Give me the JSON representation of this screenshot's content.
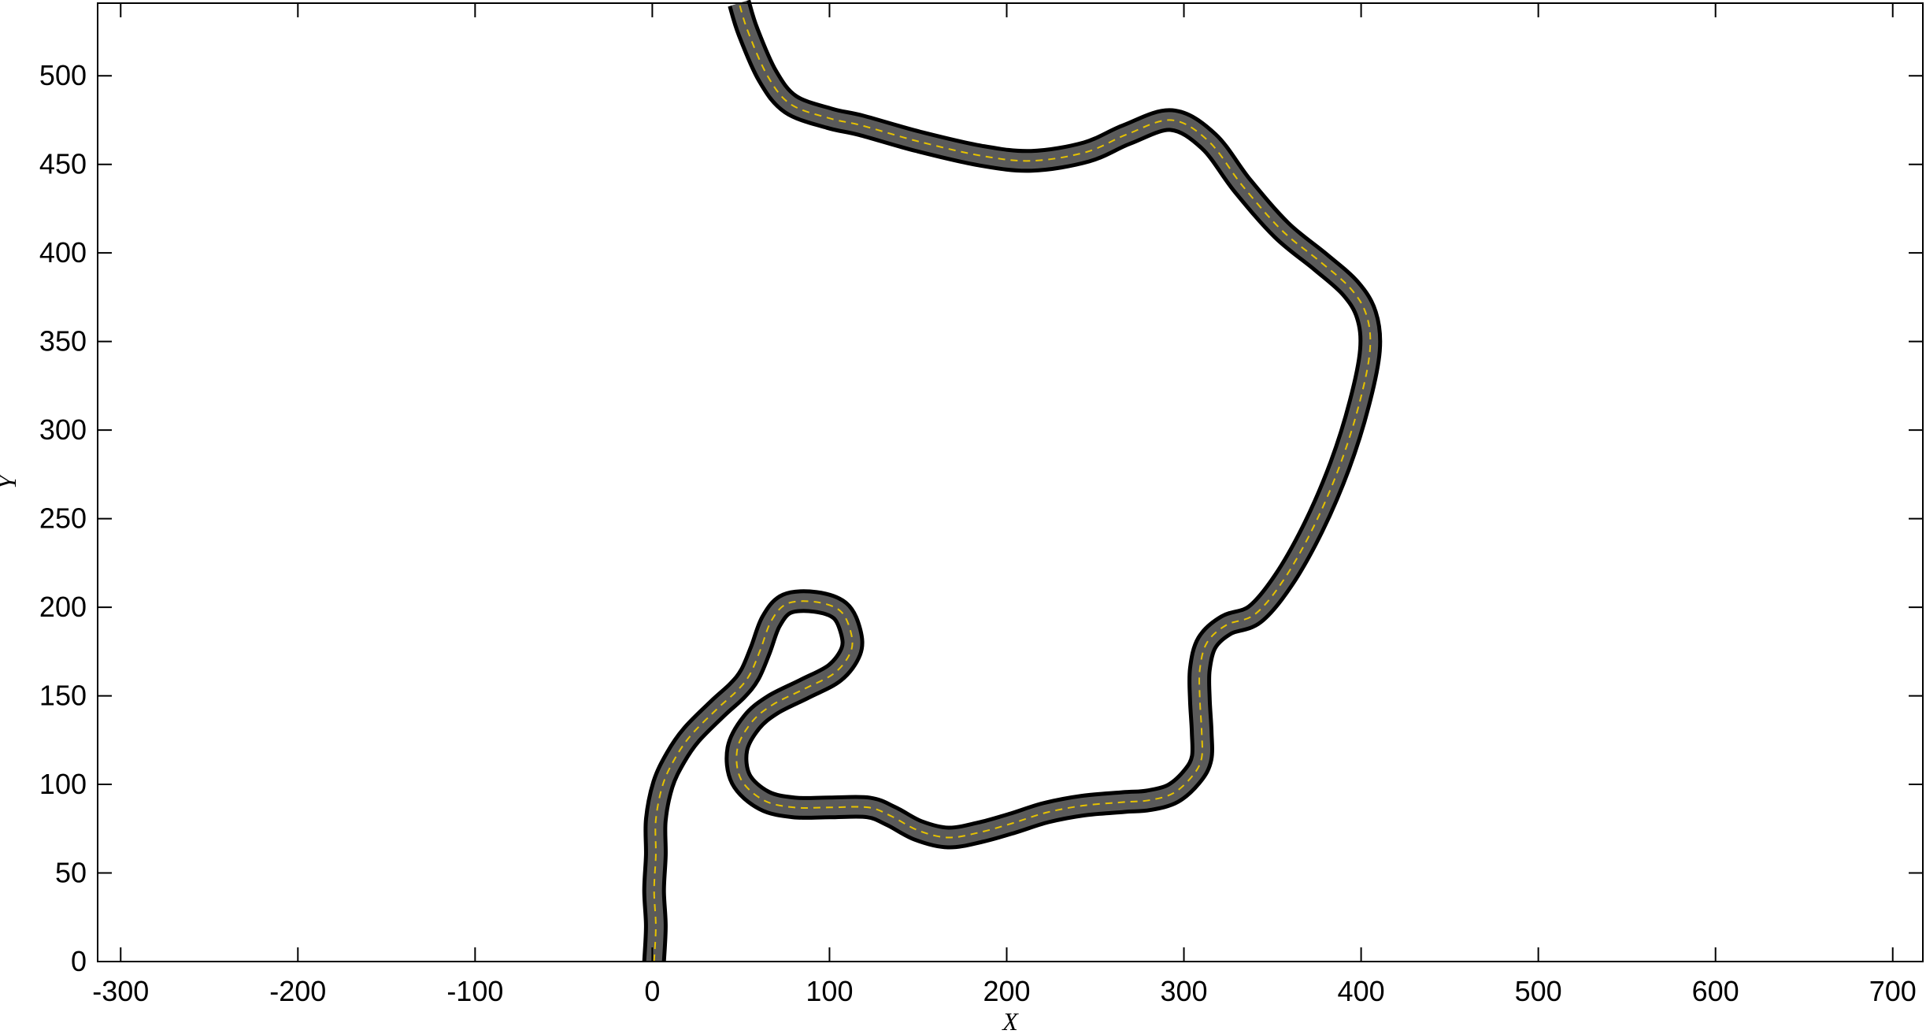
{
  "chart_data": {
    "type": "line",
    "title": "",
    "xlabel": "X",
    "ylabel": "Y",
    "xlim": [
      -313,
      717
    ],
    "ylim": [
      0,
      541
    ],
    "xticks": [
      -300,
      -200,
      -100,
      0,
      100,
      200,
      300,
      400,
      500,
      600,
      700
    ],
    "yticks": [
      0,
      50,
      100,
      150,
      200,
      250,
      300,
      350,
      400,
      450,
      500
    ],
    "grid": false,
    "series": [
      {
        "name": "road centerline",
        "road_color": "#5a5a5a",
        "edge_color": "#000000",
        "centerline_color": "#e6c200",
        "points": [
          [
            1,
            0
          ],
          [
            2,
            20
          ],
          [
            1,
            40
          ],
          [
            2,
            60
          ],
          [
            2,
            80
          ],
          [
            6,
            100
          ],
          [
            13,
            115
          ],
          [
            22,
            128
          ],
          [
            37,
            143
          ],
          [
            48,
            153
          ],
          [
            55,
            162
          ],
          [
            61,
            176
          ],
          [
            67,
            192
          ],
          [
            76,
            202
          ],
          [
            92,
            203
          ],
          [
            106,
            198
          ],
          [
            112,
            186
          ],
          [
            112,
            175
          ],
          [
            103,
            163
          ],
          [
            86,
            154
          ],
          [
            68,
            145
          ],
          [
            56,
            135
          ],
          [
            48,
            120
          ],
          [
            50,
            103
          ],
          [
            63,
            91
          ],
          [
            80,
            87
          ],
          [
            100,
            87
          ],
          [
            122,
            87
          ],
          [
            135,
            82
          ],
          [
            150,
            74
          ],
          [
            167,
            70
          ],
          [
            185,
            73
          ],
          [
            203,
            78
          ],
          [
            222,
            84
          ],
          [
            243,
            88
          ],
          [
            266,
            90
          ],
          [
            280,
            91
          ],
          [
            294,
            95
          ],
          [
            305,
            105
          ],
          [
            310,
            115
          ],
          [
            310,
            130
          ],
          [
            309,
            148
          ],
          [
            309,
            165
          ],
          [
            313,
            180
          ],
          [
            324,
            190
          ],
          [
            340,
            196
          ],
          [
            356,
            215
          ],
          [
            373,
            245
          ],
          [
            388,
            280
          ],
          [
            399,
            315
          ],
          [
            405,
            345
          ],
          [
            403,
            365
          ],
          [
            394,
            380
          ],
          [
            377,
            395
          ],
          [
            355,
            413
          ],
          [
            333,
            438
          ],
          [
            314,
            463
          ],
          [
            293,
            475
          ],
          [
            268,
            467
          ],
          [
            245,
            457
          ],
          [
            214,
            452
          ],
          [
            185,
            455
          ],
          [
            150,
            463
          ],
          [
            118,
            472
          ],
          [
            100,
            476
          ],
          [
            78,
            484
          ],
          [
            65,
            500
          ],
          [
            54,
            525
          ],
          [
            49,
            541
          ]
        ]
      }
    ]
  }
}
